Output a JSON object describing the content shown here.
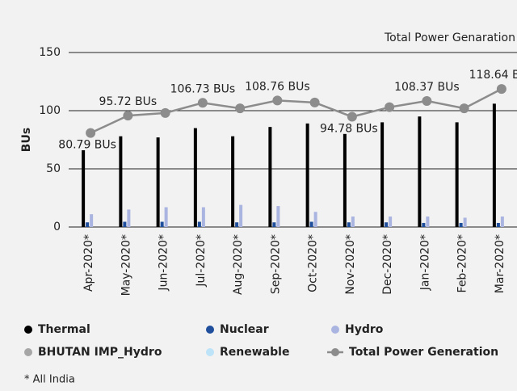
{
  "chart_data": {
    "type": "bar",
    "annotation": "Total Power Genaration",
    "y_label": "BUs",
    "footnote": "* All India",
    "categories": [
      "Apr-2020*",
      "May-2020*",
      "Jun-2020*",
      "Jul-2020*",
      "Aug-2020*",
      "Sep-2020*",
      "Oct-2020*",
      "Nov-2020*",
      "Dec-2020*",
      "Jan-2020*",
      "Feb-2020*",
      "Mar-2020*"
    ],
    "ylim": [
      0,
      150
    ],
    "yticks": [
      0,
      50,
      100,
      150
    ],
    "grid": true,
    "series": [
      {
        "name": "Thermal",
        "color": "#000000",
        "values": [
          66,
          78,
          77,
          85,
          78,
          86,
          89,
          80,
          90,
          95,
          90,
          106
        ]
      },
      {
        "name": "Nuclear",
        "color": "#1f4e9c",
        "values": [
          4,
          4.5,
          4.5,
          4.5,
          4,
          4,
          4.5,
          4,
          4,
          3.5,
          3.5,
          3.5
        ]
      },
      {
        "name": "Hydro",
        "color": "#aab4e0",
        "values": [
          11,
          15,
          17,
          17,
          19,
          18,
          13,
          9,
          9,
          9,
          8,
          9
        ]
      },
      {
        "name": "BHUTAN IMP_Hydro",
        "color": "#a6a6a6",
        "values": [
          null,
          null,
          null,
          null,
          null,
          null,
          null,
          null,
          null,
          null,
          null,
          null
        ]
      },
      {
        "name": "Renewable",
        "color": "#bde3f8",
        "values": [
          null,
          null,
          null,
          null,
          null,
          null,
          null,
          null,
          null,
          null,
          null,
          null
        ]
      },
      {
        "name": "Total Power Generation",
        "type": "line",
        "color": "#8c8c8c",
        "values": [
          80.79,
          95.72,
          98,
          106.73,
          102,
          108.76,
          107,
          94.78,
          103,
          108.37,
          102,
          118.64
        ],
        "value_labels": [
          "80.79 BUs",
          "95.72 BUs",
          null,
          "106.73 BUs",
          null,
          "108.76 BUs",
          null,
          "94.78 BUs",
          null,
          "108.37 BUs",
          null,
          "118.64 BUs"
        ]
      }
    ]
  }
}
